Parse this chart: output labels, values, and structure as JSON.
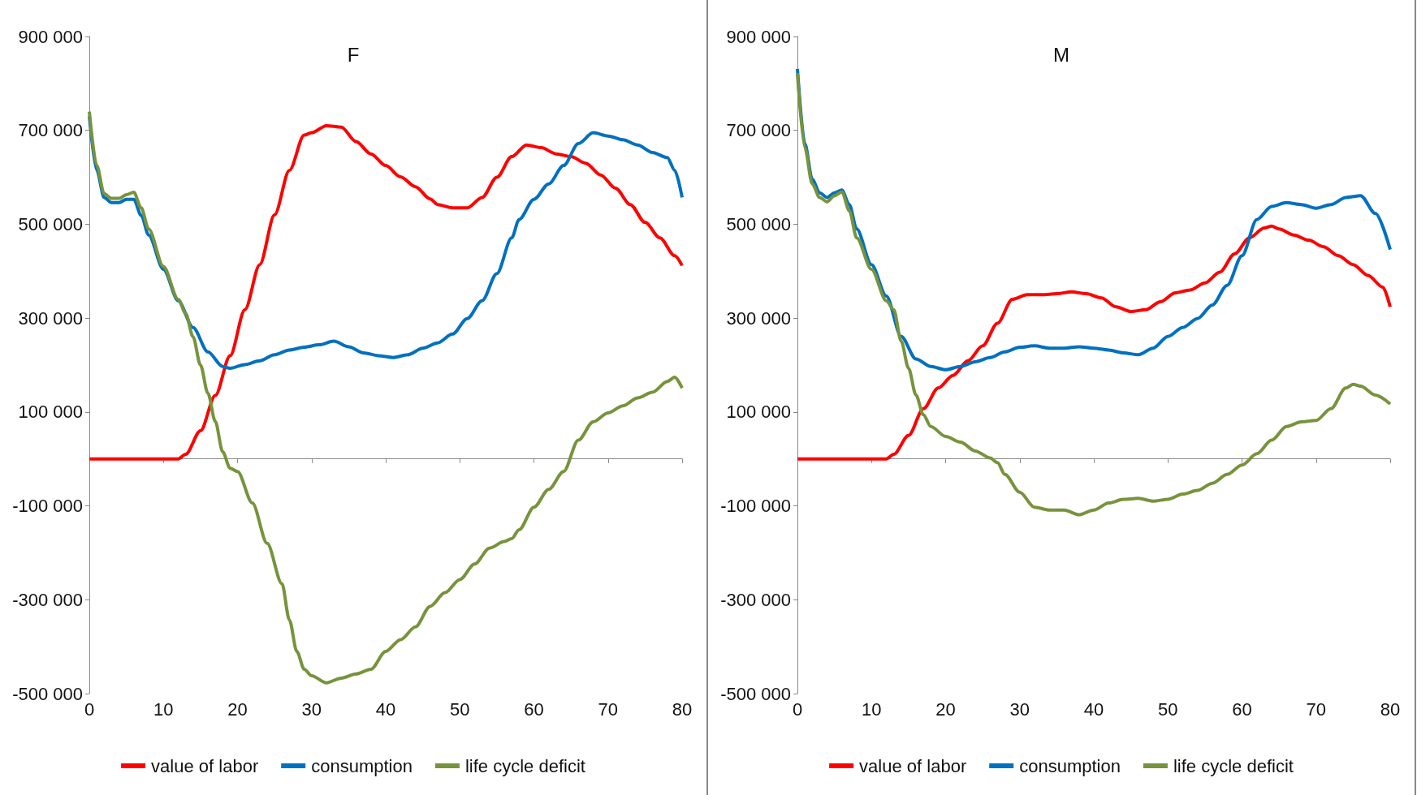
{
  "chart_data": [
    {
      "type": "line",
      "title": "F",
      "marker": "none",
      "line_style": "solid",
      "grid": false,
      "legend": "bottom",
      "xlim": [
        0,
        80
      ],
      "xticks": [
        0,
        10,
        20,
        30,
        40,
        50,
        60,
        70,
        80
      ],
      "ylim": [
        -500000,
        900000
      ],
      "yticks": [
        {
          "value": -500000,
          "label": "-500 000"
        },
        {
          "value": -300000,
          "label": "-300 000"
        },
        {
          "value": -100000,
          "label": "-100 000"
        },
        {
          "value": 100000,
          "label": "100 000"
        },
        {
          "value": 300000,
          "label": "300 000"
        },
        {
          "value": 500000,
          "label": "500 000"
        },
        {
          "value": 700000,
          "label": "700 000"
        },
        {
          "value": 900000,
          "label": "900 000"
        }
      ],
      "series": [
        {
          "name": "value of labor",
          "color": "#ff0000",
          "x": [
            0,
            12,
            13,
            15,
            17,
            19,
            21,
            23,
            25,
            27,
            29,
            30,
            32,
            34,
            36,
            38,
            40,
            42,
            44,
            46,
            47,
            49,
            51,
            53,
            55,
            57,
            59,
            61,
            63,
            65,
            67,
            69,
            71,
            73,
            75,
            77,
            79,
            80
          ],
          "values": [
            0,
            0,
            10000,
            60000,
            135000,
            220000,
            318000,
            414000,
            520000,
            615000,
            690000,
            695000,
            710000,
            707000,
            676000,
            650000,
            625000,
            601000,
            580000,
            554000,
            542000,
            535000,
            535000,
            557000,
            600000,
            644000,
            669000,
            663000,
            650000,
            644000,
            630000,
            605000,
            577000,
            542000,
            504000,
            471000,
            433000,
            412000
          ]
        },
        {
          "name": "consumption",
          "color": "#0070c0",
          "x": [
            0,
            1,
            2,
            3,
            4,
            5,
            6,
            7,
            8,
            10,
            12,
            14,
            16,
            18,
            19,
            21,
            23,
            25,
            27,
            29,
            31,
            33,
            35,
            37,
            39,
            41,
            43,
            45,
            47,
            49,
            51,
            53,
            55,
            57,
            58,
            60,
            62,
            64,
            66,
            68,
            70,
            72,
            74,
            76,
            78,
            79,
            80
          ],
          "values": [
            730000,
            615000,
            557000,
            546000,
            546000,
            553000,
            553000,
            519000,
            477000,
            404000,
            337000,
            280000,
            228000,
            197000,
            193000,
            201000,
            209000,
            222000,
            232000,
            238000,
            243000,
            251000,
            239000,
            226000,
            220000,
            216000,
            222000,
            236000,
            247000,
            266000,
            299000,
            337000,
            395000,
            471000,
            510000,
            553000,
            586000,
            625000,
            672000,
            695000,
            688000,
            680000,
            669000,
            653000,
            642000,
            615000,
            557000
          ]
        },
        {
          "name": "life cycle deficit",
          "color": "#77933c",
          "x": [
            0,
            1,
            2,
            3,
            4,
            5,
            6,
            7,
            8,
            10,
            12,
            13,
            14,
            15,
            16,
            17,
            18,
            19,
            20,
            22,
            24,
            26,
            27,
            28,
            29,
            30,
            32,
            34,
            36,
            38,
            40,
            42,
            44,
            46,
            48,
            50,
            52,
            54,
            56,
            57,
            58,
            60,
            62,
            64,
            66,
            68,
            70,
            72,
            74,
            76,
            78,
            79,
            80
          ],
          "values": [
            740000,
            625000,
            565000,
            555000,
            555000,
            563000,
            568000,
            535000,
            490000,
            410000,
            340000,
            310000,
            260000,
            200000,
            140000,
            80000,
            15000,
            -20000,
            -27000,
            -94000,
            -180000,
            -266000,
            -343000,
            -410000,
            -448000,
            -462000,
            -477000,
            -467000,
            -458000,
            -448000,
            -410000,
            -385000,
            -358000,
            -314000,
            -285000,
            -257000,
            -224000,
            -190000,
            -176000,
            -170000,
            -151000,
            -103000,
            -65000,
            -27000,
            40000,
            79000,
            98000,
            113000,
            130000,
            142000,
            165000,
            174000,
            151000
          ]
        }
      ]
    },
    {
      "type": "line",
      "title": "M",
      "marker": "none",
      "line_style": "solid",
      "grid": false,
      "legend": "bottom",
      "xlim": [
        0,
        80
      ],
      "xticks": [
        0,
        10,
        20,
        30,
        40,
        50,
        60,
        70,
        80
      ],
      "ylim": [
        -500000,
        900000
      ],
      "yticks": [
        {
          "value": -500000,
          "label": "-500 000"
        },
        {
          "value": -300000,
          "label": "-300 000"
        },
        {
          "value": -100000,
          "label": "-100 000"
        },
        {
          "value": 100000,
          "label": "100 000"
        },
        {
          "value": 300000,
          "label": "300 000"
        },
        {
          "value": 500000,
          "label": "500 000"
        },
        {
          "value": 700000,
          "label": "700 000"
        },
        {
          "value": 900000,
          "label": "900 000"
        }
      ],
      "series": [
        {
          "name": "value of labor",
          "color": "#ff0000",
          "x": [
            0,
            12,
            13,
            15,
            17,
            19,
            21,
            23,
            25,
            27,
            29,
            31,
            33,
            35,
            37,
            39,
            41,
            43,
            45,
            47,
            49,
            51,
            53,
            55,
            57,
            59,
            61,
            63,
            64,
            65,
            67,
            69,
            71,
            73,
            75,
            77,
            79,
            80
          ],
          "values": [
            0,
            0,
            10000,
            50000,
            107000,
            151000,
            178000,
            209000,
            241000,
            289000,
            340000,
            350000,
            350000,
            352000,
            356000,
            352000,
            343000,
            324000,
            314000,
            318000,
            335000,
            354000,
            360000,
            375000,
            398000,
            437000,
            471000,
            492000,
            496000,
            490000,
            477000,
            466000,
            452000,
            433000,
            414000,
            391000,
            366000,
            324000
          ]
        },
        {
          "name": "consumption",
          "color": "#0070c0",
          "x": [
            0,
            1,
            2,
            3,
            4,
            5,
            6,
            7,
            8,
            10,
            12,
            14,
            16,
            18,
            20,
            22,
            24,
            26,
            28,
            30,
            32,
            34,
            36,
            38,
            40,
            42,
            44,
            46,
            48,
            50,
            52,
            54,
            56,
            58,
            60,
            62,
            64,
            66,
            68,
            70,
            72,
            74,
            76,
            78,
            80
          ],
          "values": [
            831000,
            672000,
            596000,
            567000,
            557000,
            567000,
            573000,
            542000,
            490000,
            414000,
            347000,
            261000,
            213000,
            197000,
            190000,
            197000,
            207000,
            216000,
            228000,
            238000,
            241000,
            236000,
            236000,
            239000,
            236000,
            232000,
            226000,
            222000,
            236000,
            261000,
            280000,
            299000,
            328000,
            370000,
            433000,
            510000,
            538000,
            546000,
            542000,
            534000,
            542000,
            557000,
            561000,
            523000,
            446000
          ]
        },
        {
          "name": "life cycle deficit",
          "color": "#77933c",
          "x": [
            0,
            1,
            2,
            3,
            4,
            5,
            6,
            7,
            8,
            10,
            12,
            13,
            14,
            15,
            16,
            17,
            18,
            20,
            22,
            24,
            26,
            27,
            28,
            30,
            32,
            34,
            36,
            38,
            40,
            42,
            44,
            46,
            48,
            50,
            52,
            54,
            56,
            58,
            60,
            62,
            64,
            66,
            68,
            70,
            72,
            74,
            75,
            76,
            78,
            80
          ],
          "values": [
            822000,
            663000,
            586000,
            557000,
            548000,
            561000,
            569000,
            529000,
            471000,
            404000,
            337000,
            318000,
            251000,
            193000,
            136000,
            94000,
            69000,
            48000,
            36000,
            17000,
            2000,
            -8000,
            -33000,
            -71000,
            -103000,
            -109000,
            -109000,
            -119000,
            -109000,
            -94000,
            -86000,
            -84000,
            -90000,
            -86000,
            -75000,
            -67000,
            -52000,
            -33000,
            -13000,
            11000,
            40000,
            69000,
            79000,
            82000,
            107000,
            151000,
            159000,
            155000,
            136000,
            117000
          ]
        }
      ]
    }
  ]
}
